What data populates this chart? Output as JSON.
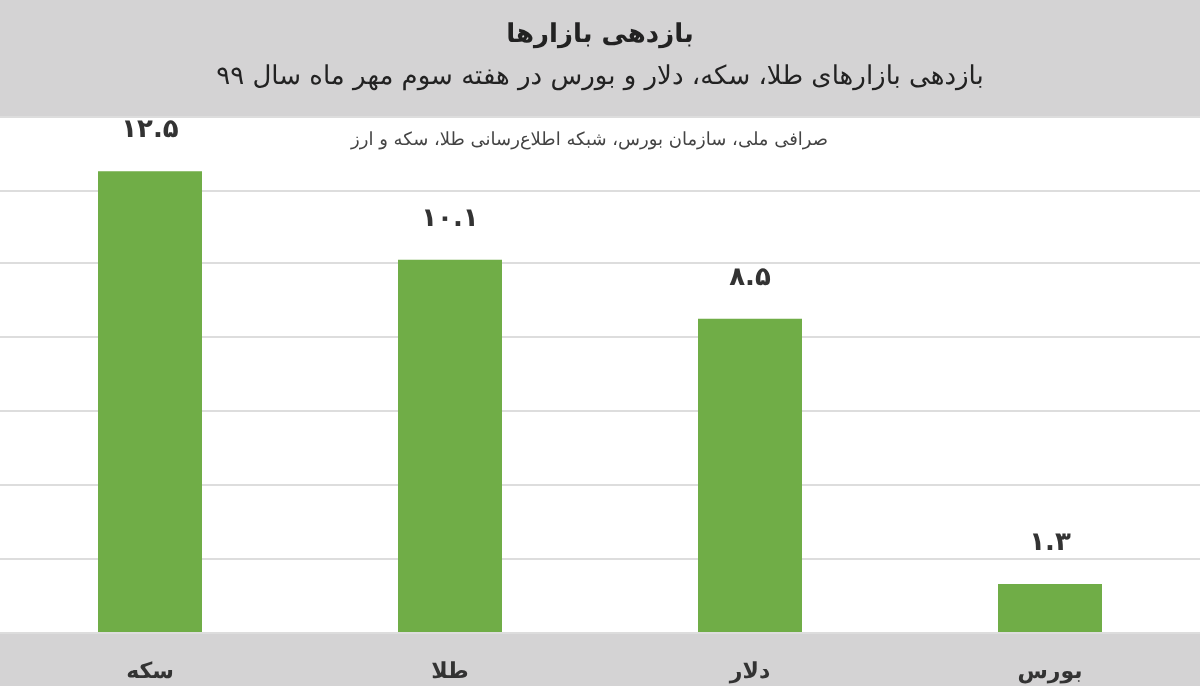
{
  "chart_data": {
    "type": "bar",
    "title": "بازدهی بازارها",
    "subtitle": "بازدهی بازارهای طلا، سکه، دلار و بورس در هفته سوم مهر ماه سال ۹۹",
    "annotations": [
      "صرافی ملی، سازمان بورس، شبکه اطلاع‌رسانی طلا، سکه و ارز"
    ],
    "categories": [
      "سکه",
      "طلا",
      "دلار",
      "بورس"
    ],
    "values": [
      12.5,
      10.1,
      8.5,
      1.3
    ],
    "value_labels": [
      "۱۲.۵",
      "۱۰.۱",
      "۸.۵",
      "۱.۳"
    ],
    "color": "#70ad47",
    "ylim": [
      0,
      14
    ],
    "yticks": [
      0,
      2,
      4,
      6,
      8,
      10,
      12,
      14
    ],
    "tick_labels": "x",
    "grid": "y"
  }
}
